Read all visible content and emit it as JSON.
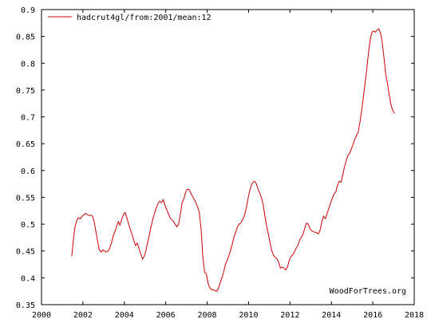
{
  "chart_data": {
    "type": "line",
    "title": "",
    "xlabel": "",
    "ylabel": "",
    "xlim": [
      2000,
      2018
    ],
    "ylim": [
      0.35,
      0.9
    ],
    "x_ticks": [
      "2000",
      "2002",
      "2004",
      "2006",
      "2008",
      "2010",
      "2012",
      "2014",
      "2016",
      "2018"
    ],
    "y_ticks": [
      "0.35",
      "0.4",
      "0.45",
      "0.5",
      "0.55",
      "0.6",
      "0.65",
      "0.7",
      "0.75",
      "0.8",
      "0.85",
      "0.9"
    ],
    "grid": false,
    "legend_position": "top-left",
    "series": [
      {
        "name": "hadcrut4gl/from:2001/mean:12",
        "color": "#cc0000",
        "points": [
          [
            2001.46,
            0.44
          ],
          [
            2001.54,
            0.472
          ],
          [
            2001.62,
            0.495
          ],
          [
            2001.71,
            0.508
          ],
          [
            2001.79,
            0.512
          ],
          [
            2001.88,
            0.51
          ],
          [
            2001.96,
            0.515
          ],
          [
            2002.04,
            0.517
          ],
          [
            2002.12,
            0.52
          ],
          [
            2002.21,
            0.518
          ],
          [
            2002.29,
            0.516
          ],
          [
            2002.38,
            0.517
          ],
          [
            2002.46,
            0.515
          ],
          [
            2002.54,
            0.505
          ],
          [
            2002.62,
            0.488
          ],
          [
            2002.71,
            0.468
          ],
          [
            2002.79,
            0.452
          ],
          [
            2002.88,
            0.448
          ],
          [
            2002.96,
            0.452
          ],
          [
            2003.04,
            0.45
          ],
          [
            2003.12,
            0.448
          ],
          [
            2003.21,
            0.45
          ],
          [
            2003.29,
            0.455
          ],
          [
            2003.38,
            0.465
          ],
          [
            2003.46,
            0.478
          ],
          [
            2003.54,
            0.485
          ],
          [
            2003.62,
            0.495
          ],
          [
            2003.71,
            0.505
          ],
          [
            2003.79,
            0.498
          ],
          [
            2003.88,
            0.51
          ],
          [
            2003.96,
            0.518
          ],
          [
            2004.04,
            0.522
          ],
          [
            2004.12,
            0.512
          ],
          [
            2004.21,
            0.5
          ],
          [
            2004.29,
            0.49
          ],
          [
            2004.38,
            0.48
          ],
          [
            2004.46,
            0.47
          ],
          [
            2004.54,
            0.46
          ],
          [
            2004.62,
            0.465
          ],
          [
            2004.71,
            0.455
          ],
          [
            2004.79,
            0.445
          ],
          [
            2004.88,
            0.435
          ],
          [
            2004.96,
            0.44
          ],
          [
            2005.04,
            0.45
          ],
          [
            2005.12,
            0.465
          ],
          [
            2005.21,
            0.48
          ],
          [
            2005.29,
            0.495
          ],
          [
            2005.38,
            0.51
          ],
          [
            2005.46,
            0.52
          ],
          [
            2005.54,
            0.53
          ],
          [
            2005.62,
            0.538
          ],
          [
            2005.71,
            0.543
          ],
          [
            2005.79,
            0.54
          ],
          [
            2005.88,
            0.546
          ],
          [
            2005.96,
            0.535
          ],
          [
            2006.04,
            0.528
          ],
          [
            2006.12,
            0.52
          ],
          [
            2006.21,
            0.512
          ],
          [
            2006.29,
            0.508
          ],
          [
            2006.38,
            0.505
          ],
          [
            2006.46,
            0.5
          ],
          [
            2006.54,
            0.495
          ],
          [
            2006.62,
            0.5
          ],
          [
            2006.71,
            0.52
          ],
          [
            2006.79,
            0.54
          ],
          [
            2006.88,
            0.548
          ],
          [
            2006.96,
            0.56
          ],
          [
            2007.04,
            0.565
          ],
          [
            2007.12,
            0.565
          ],
          [
            2007.21,
            0.558
          ],
          [
            2007.29,
            0.552
          ],
          [
            2007.38,
            0.546
          ],
          [
            2007.46,
            0.54
          ],
          [
            2007.54,
            0.532
          ],
          [
            2007.62,
            0.522
          ],
          [
            2007.71,
            0.49
          ],
          [
            2007.79,
            0.44
          ],
          [
            2007.88,
            0.41
          ],
          [
            2007.96,
            0.408
          ],
          [
            2008.04,
            0.39
          ],
          [
            2008.12,
            0.382
          ],
          [
            2008.21,
            0.378
          ],
          [
            2008.29,
            0.378
          ],
          [
            2008.38,
            0.376
          ],
          [
            2008.46,
            0.375
          ],
          [
            2008.54,
            0.38
          ],
          [
            2008.62,
            0.39
          ],
          [
            2008.71,
            0.4
          ],
          [
            2008.79,
            0.41
          ],
          [
            2008.88,
            0.425
          ],
          [
            2008.96,
            0.432
          ],
          [
            2009.04,
            0.44
          ],
          [
            2009.12,
            0.45
          ],
          [
            2009.21,
            0.462
          ],
          [
            2009.29,
            0.475
          ],
          [
            2009.38,
            0.485
          ],
          [
            2009.46,
            0.495
          ],
          [
            2009.54,
            0.5
          ],
          [
            2009.62,
            0.502
          ],
          [
            2009.71,
            0.508
          ],
          [
            2009.79,
            0.515
          ],
          [
            2009.88,
            0.528
          ],
          [
            2009.96,
            0.545
          ],
          [
            2010.04,
            0.56
          ],
          [
            2010.12,
            0.572
          ],
          [
            2010.21,
            0.578
          ],
          [
            2010.29,
            0.58
          ],
          [
            2010.38,
            0.575
          ],
          [
            2010.46,
            0.565
          ],
          [
            2010.54,
            0.558
          ],
          [
            2010.62,
            0.55
          ],
          [
            2010.71,
            0.535
          ],
          [
            2010.79,
            0.515
          ],
          [
            2010.88,
            0.495
          ],
          [
            2010.96,
            0.48
          ],
          [
            2011.04,
            0.465
          ],
          [
            2011.12,
            0.45
          ],
          [
            2011.21,
            0.442
          ],
          [
            2011.29,
            0.438
          ],
          [
            2011.38,
            0.435
          ],
          [
            2011.46,
            0.428
          ],
          [
            2011.54,
            0.418
          ],
          [
            2011.62,
            0.42
          ],
          [
            2011.71,
            0.418
          ],
          [
            2011.79,
            0.415
          ],
          [
            2011.88,
            0.42
          ],
          [
            2011.96,
            0.432
          ],
          [
            2012.04,
            0.44
          ],
          [
            2012.12,
            0.442
          ],
          [
            2012.21,
            0.448
          ],
          [
            2012.29,
            0.455
          ],
          [
            2012.38,
            0.46
          ],
          [
            2012.46,
            0.47
          ],
          [
            2012.54,
            0.475
          ],
          [
            2012.62,
            0.48
          ],
          [
            2012.71,
            0.492
          ],
          [
            2012.79,
            0.502
          ],
          [
            2012.88,
            0.5
          ],
          [
            2012.96,
            0.492
          ],
          [
            2013.04,
            0.488
          ],
          [
            2013.12,
            0.486
          ],
          [
            2013.21,
            0.485
          ],
          [
            2013.29,
            0.484
          ],
          [
            2013.38,
            0.482
          ],
          [
            2013.46,
            0.49
          ],
          [
            2013.54,
            0.505
          ],
          [
            2013.62,
            0.515
          ],
          [
            2013.71,
            0.51
          ],
          [
            2013.79,
            0.52
          ],
          [
            2013.88,
            0.53
          ],
          [
            2013.96,
            0.54
          ],
          [
            2014.04,
            0.548
          ],
          [
            2014.12,
            0.556
          ],
          [
            2014.21,
            0.56
          ],
          [
            2014.29,
            0.572
          ],
          [
            2014.38,
            0.58
          ],
          [
            2014.46,
            0.578
          ],
          [
            2014.54,
            0.59
          ],
          [
            2014.62,
            0.605
          ],
          [
            2014.71,
            0.618
          ],
          [
            2014.79,
            0.628
          ],
          [
            2014.88,
            0.632
          ],
          [
            2014.96,
            0.64
          ],
          [
            2015.04,
            0.648
          ],
          [
            2015.12,
            0.658
          ],
          [
            2015.21,
            0.665
          ],
          [
            2015.29,
            0.672
          ],
          [
            2015.38,
            0.69
          ],
          [
            2015.46,
            0.712
          ],
          [
            2015.54,
            0.735
          ],
          [
            2015.62,
            0.762
          ],
          [
            2015.71,
            0.79
          ],
          [
            2015.79,
            0.82
          ],
          [
            2015.88,
            0.845
          ],
          [
            2015.96,
            0.858
          ],
          [
            2016.04,
            0.86
          ],
          [
            2016.12,
            0.858
          ],
          [
            2016.21,
            0.862
          ],
          [
            2016.29,
            0.864
          ],
          [
            2016.38,
            0.855
          ],
          [
            2016.46,
            0.838
          ],
          [
            2016.54,
            0.81
          ],
          [
            2016.62,
            0.78
          ],
          [
            2016.71,
            0.762
          ],
          [
            2016.79,
            0.742
          ],
          [
            2016.88,
            0.722
          ],
          [
            2016.96,
            0.712
          ],
          [
            2017.04,
            0.707
          ]
        ]
      }
    ],
    "watermark": "WoodForTrees.org"
  }
}
